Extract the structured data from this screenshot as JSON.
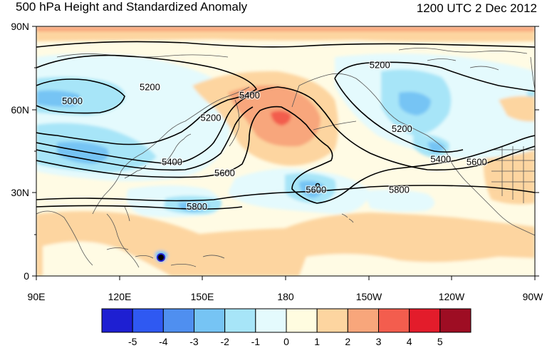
{
  "header": {
    "title": "500 hPa Height and Standardized Anomaly",
    "datetime": "1200 UTC 2 Dec 2012"
  },
  "map": {
    "longitude_labels": [
      "90E",
      "120E",
      "150E",
      "180",
      "150W",
      "120W",
      "90W"
    ],
    "latitude_labels": [
      "90N",
      "60N",
      "30N",
      "0"
    ],
    "contour_labels": [
      {
        "text": "5200",
        "lon": 131,
        "lat": 68
      },
      {
        "text": "5200",
        "lon": 214,
        "lat": 76
      },
      {
        "text": "5000",
        "lon": 103,
        "lat": 63
      },
      {
        "text": "5400",
        "lon": 167,
        "lat": 65
      },
      {
        "text": "5200",
        "lon": 153,
        "lat": 57
      },
      {
        "text": "5200",
        "lon": 222,
        "lat": 53
      },
      {
        "text": "5400",
        "lon": 139,
        "lat": 41
      },
      {
        "text": "5600",
        "lon": 158,
        "lat": 37
      },
      {
        "text": "5400",
        "lon": 236,
        "lat": 42
      },
      {
        "text": "5600",
        "lon": 249,
        "lat": 41
      },
      {
        "text": "5600",
        "lon": 191,
        "lat": 31
      },
      {
        "text": "5800",
        "lon": 221,
        "lat": 31
      },
      {
        "text": "5800",
        "lon": 148,
        "lat": 25
      }
    ]
  },
  "colorbar": {
    "labels": [
      "-5",
      "-4",
      "-3",
      "-2",
      "-1",
      "0",
      "1",
      "2",
      "3",
      "4",
      "5"
    ],
    "colors": [
      "#1e1fd2",
      "#2f59f2",
      "#4f8ff0",
      "#76c4f4",
      "#a7e5f8",
      "#e4fafd",
      "#fffce0",
      "#fdd5a0",
      "#f8a67b",
      "#f35d4e",
      "#e31c2b",
      "#9e0d23"
    ]
  },
  "colors": {
    "background": "#fffbe4",
    "land_outline": "#555555",
    "contour": "#000000"
  }
}
